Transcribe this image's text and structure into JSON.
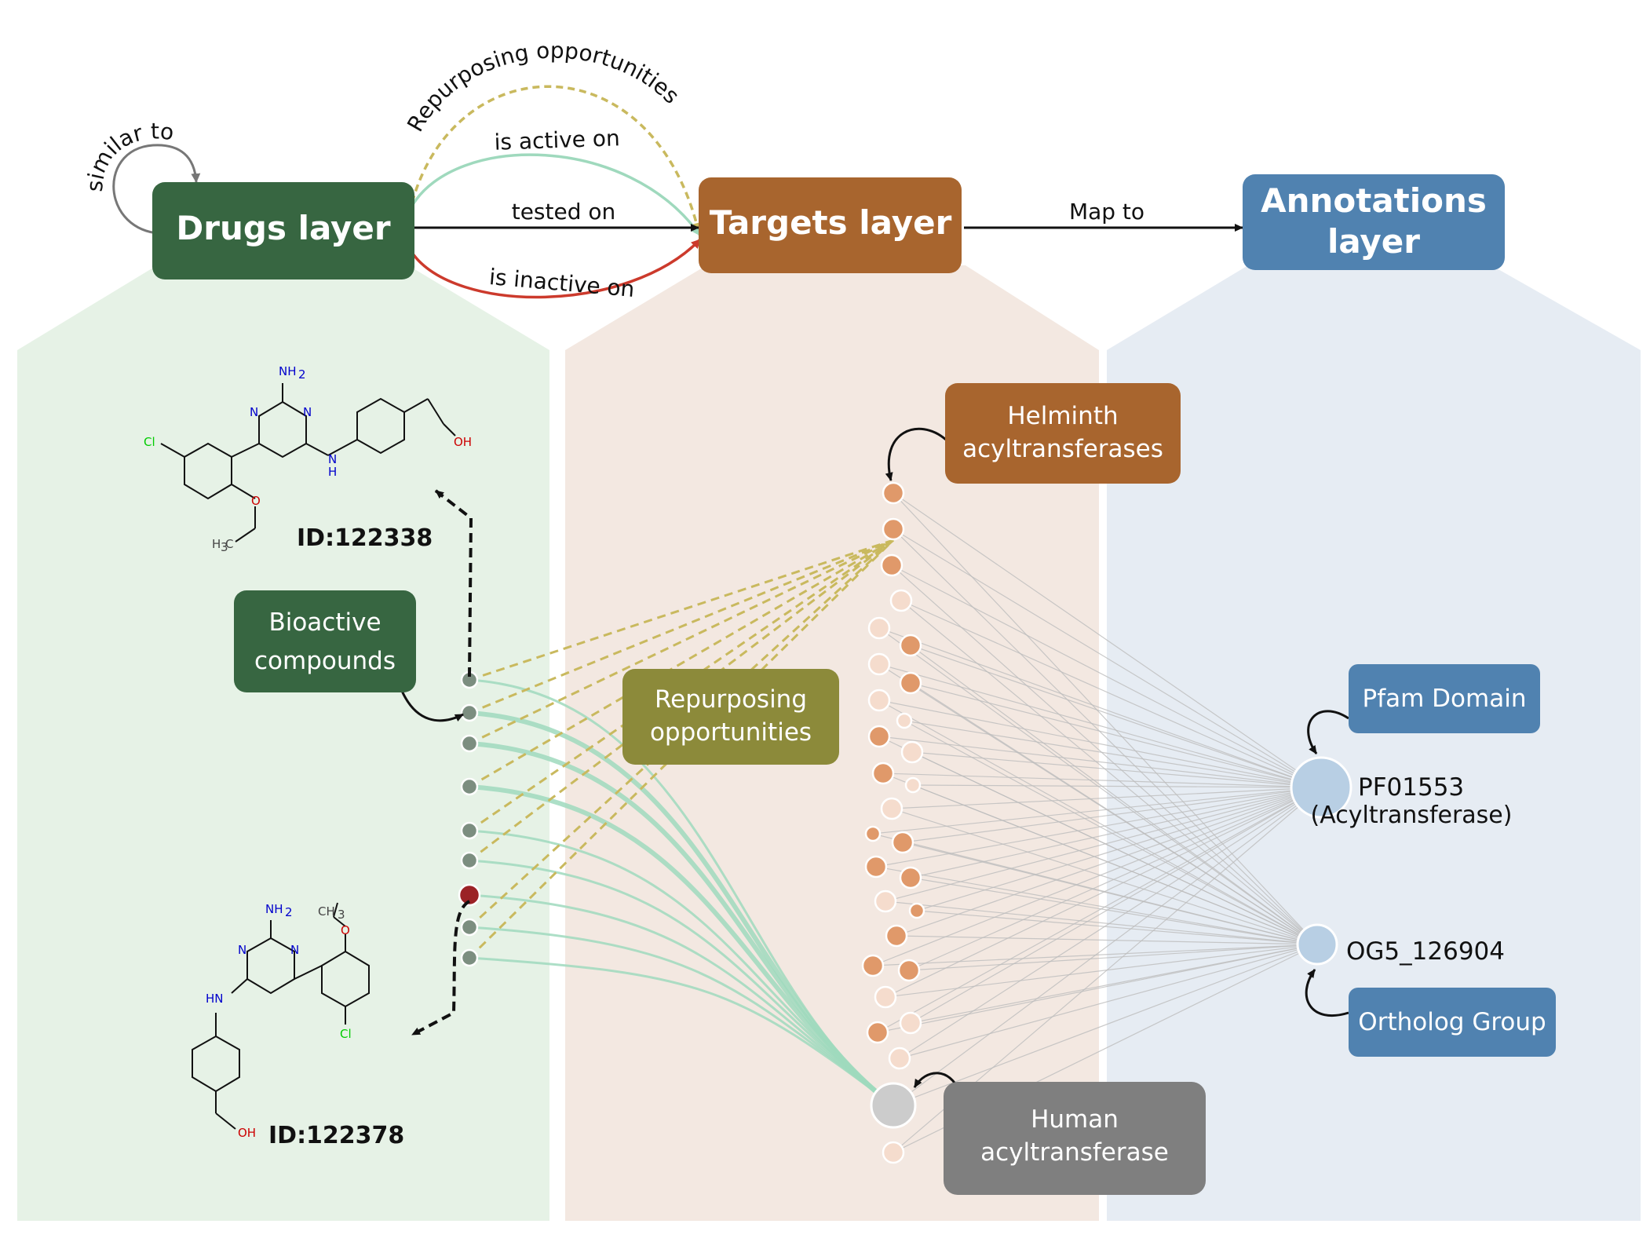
{
  "layers": {
    "drugs": "Drugs layer",
    "targets": "Targets layer",
    "annotations_line1": "Annotations",
    "annotations_line2": "layer"
  },
  "edges": {
    "similar_to": "similar to",
    "repurposing": "Repurposing opportunities",
    "is_active_on": "is active on",
    "tested_on": "tested on",
    "is_inactive_on": "is inactive on",
    "map_to": "Map to"
  },
  "boxes": {
    "bioactive_1": "Bioactive",
    "bioactive_2": "compounds",
    "repurposing_1": "Repurposing",
    "repurposing_2": "opportunities",
    "helminth_1": "Helminth",
    "helminth_2": "acyltransferases",
    "human_1": "Human",
    "human_2": "acyltransferase",
    "pfam": "Pfam Domain",
    "ortholog": "Ortholog Group"
  },
  "annotations": {
    "pfam_id": "PF01553",
    "pfam_name": "(Acyltransferase)",
    "og_id": "OG5_126904"
  },
  "compounds": {
    "top_id": "ID:122338",
    "bottom_id": "ID:122378",
    "labels": {
      "nh2": "NH",
      "sub2": "2",
      "n": "N",
      "h": "H",
      "hn": "HN",
      "cl": "Cl",
      "o": "O",
      "oh": "OH",
      "h3c_h": "H",
      "h3c_3": "3",
      "h3c_c": "C",
      "ch3_c": "CH",
      "ch3_3": "3"
    }
  },
  "colors": {
    "drugs": "#376641",
    "targets": "#a8652e",
    "annotations": "#5082b0",
    "repurposing": "#8c8a3a",
    "human": "#7f7f7f",
    "active_edge": "#9fd9bd",
    "inactive_edge": "#cc3a2c",
    "repurposing_edge": "#c9b95e"
  }
}
